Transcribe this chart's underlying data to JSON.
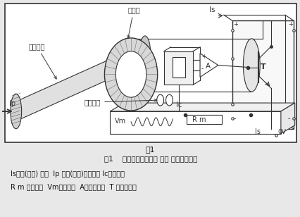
{
  "title_fig": "图1",
  "caption": "图1    为闭环电流传感器 基本 结构及原理图",
  "legend_line1": "Is补偿(付边) 电流  Ip 初级(原边)输入电流 Ic霍尔电势",
  "legend_line2": "R m 测量电阻  Vm输出电压  A运算放大器  T 功率放大器",
  "label_jicihuan": "集磁环",
  "label_yuanbian": "原边导体",
  "label_fubianxianquan": "付边线圈",
  "label_Ip": "Ip",
  "label_Is_top": "Is",
  "label_Ic": "Ic",
  "label_Rm": "R m",
  "label_Vm": "Vm",
  "label_Is_bot": "Is",
  "label_0V": "0V",
  "label_A": "A",
  "label_T": "T",
  "bg_color": "#e8e8e8",
  "diagram_bg": "#ffffff",
  "line_color": "#333333",
  "text_color": "#000000"
}
